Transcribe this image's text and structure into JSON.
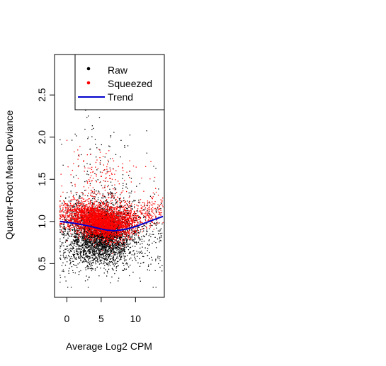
{
  "chart_data": {
    "type": "scatter",
    "title": "",
    "xlabel": "Average Log2 CPM",
    "ylabel": "Quarter-Root Mean Deviance",
    "xlim": [
      -1.8,
      14.2
    ],
    "ylim": [
      0.1,
      2.98
    ],
    "x_ticks": [
      0,
      5,
      10
    ],
    "y_ticks": [
      0.5,
      1.0,
      1.5,
      2.0,
      2.5
    ],
    "x_tick_labels": [
      "0",
      "5",
      "10"
    ],
    "y_tick_labels": [
      "0.5",
      "1.0",
      "1.5",
      "2.0",
      "2.5"
    ],
    "grid": false,
    "legend_position": "top-right",
    "series": [
      {
        "name": "Raw",
        "kind": "points",
        "color": "#000000",
        "x_range": [
          -1,
          14
        ],
        "center": 0.85,
        "spread": 0.22
      },
      {
        "name": "Squeezed",
        "kind": "points",
        "color": "#ff0000",
        "x_range": [
          -1,
          14
        ],
        "center": 0.98,
        "spread": 0.1
      },
      {
        "name": "Trend",
        "kind": "line",
        "color": "#0000cc",
        "x": [
          -1,
          0,
          1,
          2,
          3,
          4,
          5,
          6,
          7,
          8,
          9,
          10,
          11,
          12,
          13,
          14
        ],
        "y": [
          1.0,
          0.99,
          0.98,
          0.965,
          0.95,
          0.93,
          0.91,
          0.895,
          0.89,
          0.9,
          0.915,
          0.94,
          0.97,
          1.0,
          1.03,
          1.06
        ]
      }
    ]
  }
}
